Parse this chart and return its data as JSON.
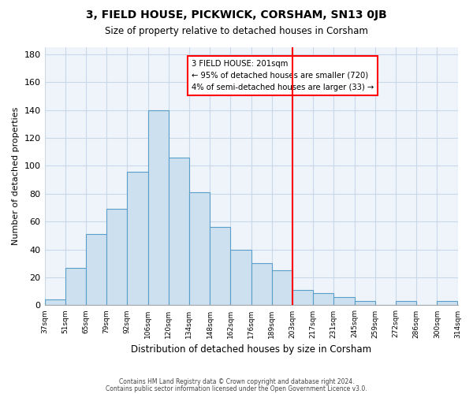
{
  "title": "3, FIELD HOUSE, PICKWICK, CORSHAM, SN13 0JB",
  "subtitle": "Size of property relative to detached houses in Corsham",
  "xlabel": "Distribution of detached houses by size in Corsham",
  "ylabel": "Number of detached properties",
  "bar_labels": [
    "37sqm",
    "51sqm",
    "65sqm",
    "79sqm",
    "92sqm",
    "106sqm",
    "120sqm",
    "134sqm",
    "148sqm",
    "162sqm",
    "176sqm",
    "189sqm",
    "203sqm",
    "217sqm",
    "231sqm",
    "245sqm",
    "259sqm",
    "272sqm",
    "286sqm",
    "300sqm",
    "314sqm"
  ],
  "bar_values": [
    4,
    27,
    51,
    69,
    96,
    140,
    106,
    81,
    56,
    40,
    30,
    25,
    11,
    9,
    6,
    3,
    0,
    3,
    0,
    3
  ],
  "bar_color": "#cce0f0",
  "bar_edge_color": "#5b9ec9",
  "highlight_line_color": "red",
  "highlight_line_index": 12,
  "annotation_line1": "3 FIELD HOUSE: 201sqm",
  "annotation_line2": "← 95% of detached houses are smaller (720)",
  "annotation_line3": "4% of semi-detached houses are larger (33) →",
  "ylim": [
    0,
    185
  ],
  "yticks": [
    0,
    20,
    40,
    60,
    80,
    100,
    120,
    140,
    160,
    180
  ],
  "footer_line1": "Contains HM Land Registry data © Crown copyright and database right 2024.",
  "footer_line2": "Contains public sector information licensed under the Open Government Licence v3.0.",
  "background_color": "#ffffff",
  "grid_color": "#c8d8e8",
  "ax_bg_color": "#eef4fa"
}
